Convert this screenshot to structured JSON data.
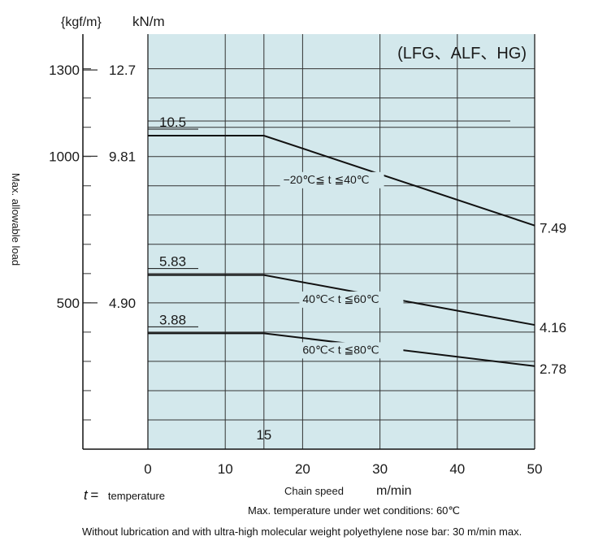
{
  "chart_data": {
    "type": "line",
    "title": "(LFG、ALF、HG)",
    "xlabel": "Chain speed",
    "xunit": "m/min",
    "ylabel": "Max. allowable load",
    "yunits": [
      "{kgf/m}",
      "kN/m"
    ],
    "xlim": [
      0,
      50
    ],
    "ylim_kN": [
      0,
      14
    ],
    "x_ticks": [
      0,
      10,
      20,
      30,
      40,
      50
    ],
    "y_ticks": [
      {
        "kgf": "1300",
        "kN": "12.7",
        "value": 12.7
      },
      {
        "kgf": "1000",
        "kN": "9.81",
        "value": 9.81
      },
      {
        "kgf": "500",
        "kN": "4.90",
        "value": 4.9
      }
    ],
    "grid": true,
    "background_color": "#d3e8ec",
    "extra_x_label": "15",
    "series": [
      {
        "name": "−20℃≦ t ≦40℃",
        "x": [
          0,
          15,
          50
        ],
        "y": [
          10.5,
          10.5,
          7.49
        ],
        "start_label": "10.5",
        "end_label": "7.49"
      },
      {
        "name": "40℃< t ≦60℃",
        "x": [
          0,
          15,
          50
        ],
        "y": [
          5.83,
          5.83,
          4.16
        ],
        "start_label": "5.83",
        "end_label": "4.16"
      },
      {
        "name": "60℃< t ≦80℃",
        "x": [
          0,
          15,
          50
        ],
        "y": [
          3.88,
          3.88,
          2.78
        ],
        "start_label": "3.88",
        "end_label": "2.78"
      }
    ]
  },
  "notes": {
    "t_symbol": "t",
    "t_equals": "=",
    "t_meaning": "temperature",
    "wet_condition": "Max. temperature under wet conditions: 60℃",
    "lubrication": "Without lubrication and with ultra-high molecular weight polyethylene nose bar: 30 m/min max."
  }
}
